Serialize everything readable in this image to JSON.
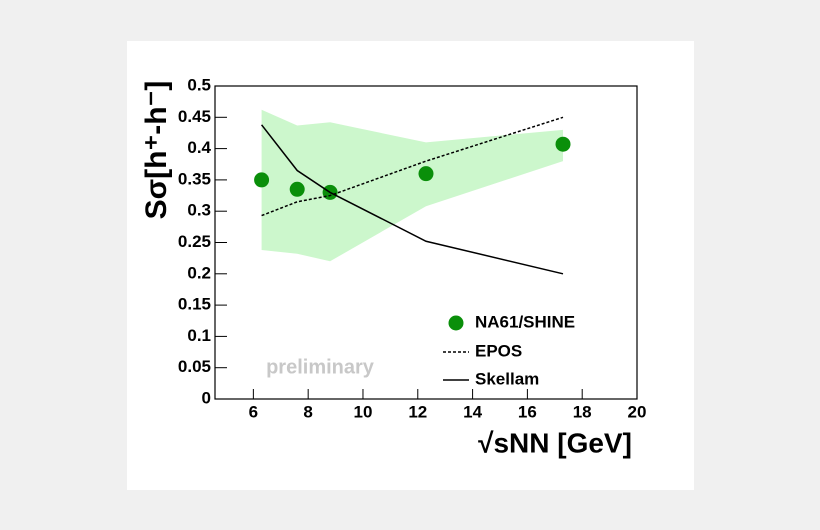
{
  "chart_data": {
    "type": "line",
    "y_label": "Sσ[h⁺-h⁻]",
    "x_label": "√sNN [GeV]",
    "annotation": "preliminary",
    "xlim": [
      4.6,
      20
    ],
    "xticks": [
      6,
      8,
      10,
      12,
      14,
      16,
      18,
      20
    ],
    "ylim": [
      0,
      0.5
    ],
    "yticks": [
      0,
      0.05,
      0.1,
      0.15,
      0.2,
      0.25,
      0.3,
      0.35,
      0.4,
      0.45,
      0.5
    ],
    "band": {
      "color": "#ccf7cc",
      "x": [
        6.3,
        7.6,
        8.8,
        12.3,
        17.3
      ],
      "lower": [
        0.238,
        0.232,
        0.22,
        0.308,
        0.38
      ],
      "upper": [
        0.462,
        0.437,
        0.442,
        0.41,
        0.43
      ]
    },
    "series": [
      {
        "name": "NA61/SHINE",
        "style": "marker",
        "color": "#0a8f0a",
        "x": [
          6.3,
          7.6,
          8.8,
          12.3,
          17.3
        ],
        "values": [
          0.35,
          0.335,
          0.33,
          0.36,
          0.407
        ]
      },
      {
        "name": "EPOS",
        "style": "dashed",
        "color": "#000000",
        "x": [
          6.3,
          7.6,
          8.8,
          12.3,
          17.3
        ],
        "values": [
          0.293,
          0.315,
          0.325,
          0.38,
          0.45
        ]
      },
      {
        "name": "Skellam",
        "style": "solid",
        "color": "#000000",
        "x": [
          6.3,
          7.6,
          8.8,
          12.3,
          17.3
        ],
        "values": [
          0.438,
          0.365,
          0.33,
          0.252,
          0.2
        ]
      }
    ]
  }
}
